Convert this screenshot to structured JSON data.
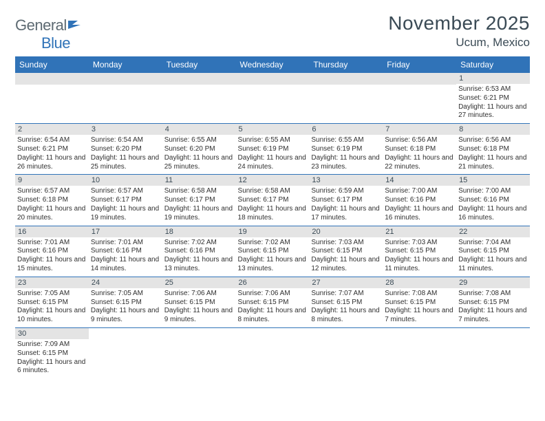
{
  "logo": {
    "general": "General",
    "blue": "Blue"
  },
  "title": "November 2025",
  "location": "Ucum, Mexico",
  "colors": {
    "accent": "#3073b8",
    "text_dark": "#3a4a55",
    "logo_gray": "#5d6a72",
    "daynum_bg": "#e4e4e4",
    "body_text": "#2f2f2f",
    "background": "#ffffff"
  },
  "days_of_week": [
    "Sunday",
    "Monday",
    "Tuesday",
    "Wednesday",
    "Thursday",
    "Friday",
    "Saturday"
  ],
  "weeks": [
    [
      null,
      null,
      null,
      null,
      null,
      null,
      {
        "n": "1",
        "sr": "Sunrise: 6:53 AM",
        "ss": "Sunset: 6:21 PM",
        "dl": "Daylight: 11 hours and 27 minutes."
      }
    ],
    [
      {
        "n": "2",
        "sr": "Sunrise: 6:54 AM",
        "ss": "Sunset: 6:21 PM",
        "dl": "Daylight: 11 hours and 26 minutes."
      },
      {
        "n": "3",
        "sr": "Sunrise: 6:54 AM",
        "ss": "Sunset: 6:20 PM",
        "dl": "Daylight: 11 hours and 25 minutes."
      },
      {
        "n": "4",
        "sr": "Sunrise: 6:55 AM",
        "ss": "Sunset: 6:20 PM",
        "dl": "Daylight: 11 hours and 25 minutes."
      },
      {
        "n": "5",
        "sr": "Sunrise: 6:55 AM",
        "ss": "Sunset: 6:19 PM",
        "dl": "Daylight: 11 hours and 24 minutes."
      },
      {
        "n": "6",
        "sr": "Sunrise: 6:55 AM",
        "ss": "Sunset: 6:19 PM",
        "dl": "Daylight: 11 hours and 23 minutes."
      },
      {
        "n": "7",
        "sr": "Sunrise: 6:56 AM",
        "ss": "Sunset: 6:18 PM",
        "dl": "Daylight: 11 hours and 22 minutes."
      },
      {
        "n": "8",
        "sr": "Sunrise: 6:56 AM",
        "ss": "Sunset: 6:18 PM",
        "dl": "Daylight: 11 hours and 21 minutes."
      }
    ],
    [
      {
        "n": "9",
        "sr": "Sunrise: 6:57 AM",
        "ss": "Sunset: 6:18 PM",
        "dl": "Daylight: 11 hours and 20 minutes."
      },
      {
        "n": "10",
        "sr": "Sunrise: 6:57 AM",
        "ss": "Sunset: 6:17 PM",
        "dl": "Daylight: 11 hours and 19 minutes."
      },
      {
        "n": "11",
        "sr": "Sunrise: 6:58 AM",
        "ss": "Sunset: 6:17 PM",
        "dl": "Daylight: 11 hours and 19 minutes."
      },
      {
        "n": "12",
        "sr": "Sunrise: 6:58 AM",
        "ss": "Sunset: 6:17 PM",
        "dl": "Daylight: 11 hours and 18 minutes."
      },
      {
        "n": "13",
        "sr": "Sunrise: 6:59 AM",
        "ss": "Sunset: 6:17 PM",
        "dl": "Daylight: 11 hours and 17 minutes."
      },
      {
        "n": "14",
        "sr": "Sunrise: 7:00 AM",
        "ss": "Sunset: 6:16 PM",
        "dl": "Daylight: 11 hours and 16 minutes."
      },
      {
        "n": "15",
        "sr": "Sunrise: 7:00 AM",
        "ss": "Sunset: 6:16 PM",
        "dl": "Daylight: 11 hours and 16 minutes."
      }
    ],
    [
      {
        "n": "16",
        "sr": "Sunrise: 7:01 AM",
        "ss": "Sunset: 6:16 PM",
        "dl": "Daylight: 11 hours and 15 minutes."
      },
      {
        "n": "17",
        "sr": "Sunrise: 7:01 AM",
        "ss": "Sunset: 6:16 PM",
        "dl": "Daylight: 11 hours and 14 minutes."
      },
      {
        "n": "18",
        "sr": "Sunrise: 7:02 AM",
        "ss": "Sunset: 6:16 PM",
        "dl": "Daylight: 11 hours and 13 minutes."
      },
      {
        "n": "19",
        "sr": "Sunrise: 7:02 AM",
        "ss": "Sunset: 6:15 PM",
        "dl": "Daylight: 11 hours and 13 minutes."
      },
      {
        "n": "20",
        "sr": "Sunrise: 7:03 AM",
        "ss": "Sunset: 6:15 PM",
        "dl": "Daylight: 11 hours and 12 minutes."
      },
      {
        "n": "21",
        "sr": "Sunrise: 7:03 AM",
        "ss": "Sunset: 6:15 PM",
        "dl": "Daylight: 11 hours and 11 minutes."
      },
      {
        "n": "22",
        "sr": "Sunrise: 7:04 AM",
        "ss": "Sunset: 6:15 PM",
        "dl": "Daylight: 11 hours and 11 minutes."
      }
    ],
    [
      {
        "n": "23",
        "sr": "Sunrise: 7:05 AM",
        "ss": "Sunset: 6:15 PM",
        "dl": "Daylight: 11 hours and 10 minutes."
      },
      {
        "n": "24",
        "sr": "Sunrise: 7:05 AM",
        "ss": "Sunset: 6:15 PM",
        "dl": "Daylight: 11 hours and 9 minutes."
      },
      {
        "n": "25",
        "sr": "Sunrise: 7:06 AM",
        "ss": "Sunset: 6:15 PM",
        "dl": "Daylight: 11 hours and 9 minutes."
      },
      {
        "n": "26",
        "sr": "Sunrise: 7:06 AM",
        "ss": "Sunset: 6:15 PM",
        "dl": "Daylight: 11 hours and 8 minutes."
      },
      {
        "n": "27",
        "sr": "Sunrise: 7:07 AM",
        "ss": "Sunset: 6:15 PM",
        "dl": "Daylight: 11 hours and 8 minutes."
      },
      {
        "n": "28",
        "sr": "Sunrise: 7:08 AM",
        "ss": "Sunset: 6:15 PM",
        "dl": "Daylight: 11 hours and 7 minutes."
      },
      {
        "n": "29",
        "sr": "Sunrise: 7:08 AM",
        "ss": "Sunset: 6:15 PM",
        "dl": "Daylight: 11 hours and 7 minutes."
      }
    ],
    [
      {
        "n": "30",
        "sr": "Sunrise: 7:09 AM",
        "ss": "Sunset: 6:15 PM",
        "dl": "Daylight: 11 hours and 6 minutes."
      },
      null,
      null,
      null,
      null,
      null,
      null
    ]
  ]
}
